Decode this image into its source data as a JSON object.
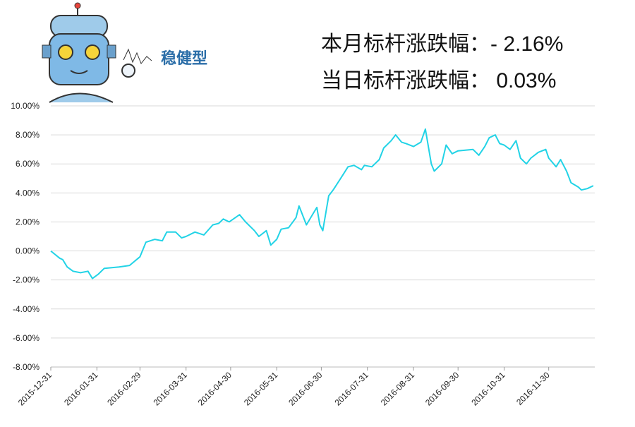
{
  "header": {
    "badge": "稳健型",
    "month_change": "本月标杆涨跌幅：- 2.16%",
    "day_change": "当日标杆涨跌幅：  0.03%"
  },
  "chart_data": {
    "type": "line",
    "x": [
      "2015-12-31",
      "2016-01-06",
      "2016-01-08",
      "2016-01-11",
      "2016-01-15",
      "2016-01-20",
      "2016-01-25",
      "2016-01-28",
      "2016-02-01",
      "2016-02-05",
      "2016-02-15",
      "2016-02-22",
      "2016-02-29",
      "2016-03-04",
      "2016-03-10",
      "2016-03-15",
      "2016-03-18",
      "2016-03-24",
      "2016-03-28",
      "2016-03-31",
      "2016-04-06",
      "2016-04-12",
      "2016-04-18",
      "2016-04-22",
      "2016-04-25",
      "2016-04-29",
      "2016-05-06",
      "2016-05-10",
      "2016-05-16",
      "2016-05-19",
      "2016-05-24",
      "2016-05-27",
      "2016-05-31",
      "2016-06-03",
      "2016-06-08",
      "2016-06-13",
      "2016-06-15",
      "2016-06-20",
      "2016-06-24",
      "2016-06-27",
      "2016-06-29",
      "2016-07-01",
      "2016-07-05",
      "2016-07-08",
      "2016-07-13",
      "2016-07-18",
      "2016-07-22",
      "2016-07-27",
      "2016-07-29",
      "2016-08-03",
      "2016-08-08",
      "2016-08-11",
      "2016-08-16",
      "2016-08-19",
      "2016-08-23",
      "2016-08-26",
      "2016-08-31",
      "2016-09-05",
      "2016-09-08",
      "2016-09-12",
      "2016-09-14",
      "2016-09-19",
      "2016-09-22",
      "2016-09-26",
      "2016-09-30",
      "2016-10-10",
      "2016-10-14",
      "2016-10-18",
      "2016-10-21",
      "2016-10-25",
      "2016-10-28",
      "2016-10-31",
      "2016-11-04",
      "2016-11-08",
      "2016-11-11",
      "2016-11-15",
      "2016-11-18",
      "2016-11-23",
      "2016-11-28",
      "2016-11-30",
      "2016-12-05",
      "2016-12-08",
      "2016-12-12",
      "2016-12-15",
      "2016-12-20",
      "2016-12-22",
      "2016-12-26",
      "2016-12-30"
    ],
    "series": [
      {
        "color": "#22d3e6",
        "values": [
          0.0,
          -0.5,
          -0.6,
          -1.1,
          -1.4,
          -1.5,
          -1.4,
          -1.9,
          -1.6,
          -1.2,
          -1.1,
          -1.0,
          -0.4,
          0.6,
          0.8,
          0.7,
          1.3,
          1.3,
          0.9,
          1.0,
          1.3,
          1.1,
          1.8,
          1.9,
          2.2,
          2.0,
          2.5,
          2.0,
          1.4,
          1.0,
          1.4,
          0.4,
          0.8,
          1.5,
          1.6,
          2.3,
          3.1,
          1.8,
          2.5,
          3.0,
          1.8,
          1.4,
          3.8,
          4.2,
          5.0,
          5.8,
          5.9,
          5.6,
          5.9,
          5.8,
          6.3,
          7.1,
          7.6,
          8.0,
          7.5,
          7.4,
          7.2,
          7.5,
          8.4,
          6.0,
          5.5,
          6.0,
          7.3,
          6.7,
          6.9,
          7.0,
          6.6,
          7.2,
          7.8,
          8.0,
          7.4,
          7.3,
          7.0,
          7.6,
          6.4,
          6.0,
          6.4,
          6.8,
          7.0,
          6.4,
          5.8,
          6.3,
          5.5,
          4.7,
          4.4,
          4.2,
          4.3,
          4.5
        ]
      }
    ],
    "xlim": [
      "2015-12-31",
      "2016-12-31"
    ],
    "xticks": [
      "2015-12-31",
      "2016-01-31",
      "2016-02-29",
      "2016-03-31",
      "2016-04-30",
      "2016-05-31",
      "2016-06-30",
      "2016-07-31",
      "2016-08-31",
      "2016-09-30",
      "2016-10-31",
      "2016-11-30"
    ],
    "ylim": [
      -8,
      10
    ],
    "yticks": [
      {
        "value": -8,
        "label": "-8.00%"
      },
      {
        "value": -6,
        "label": "-6.00%"
      },
      {
        "value": -4,
        "label": "-4.00%"
      },
      {
        "value": -2,
        "label": "-2.00%"
      },
      {
        "value": 0,
        "label": "0.00%"
      },
      {
        "value": 2,
        "label": "2.00%"
      },
      {
        "value": 4,
        "label": "4.00%"
      },
      {
        "value": 6,
        "label": "6.00%"
      },
      {
        "value": 8,
        "label": "8.00%"
      },
      {
        "value": 10,
        "label": "10.00%"
      }
    ],
    "grid": true
  }
}
